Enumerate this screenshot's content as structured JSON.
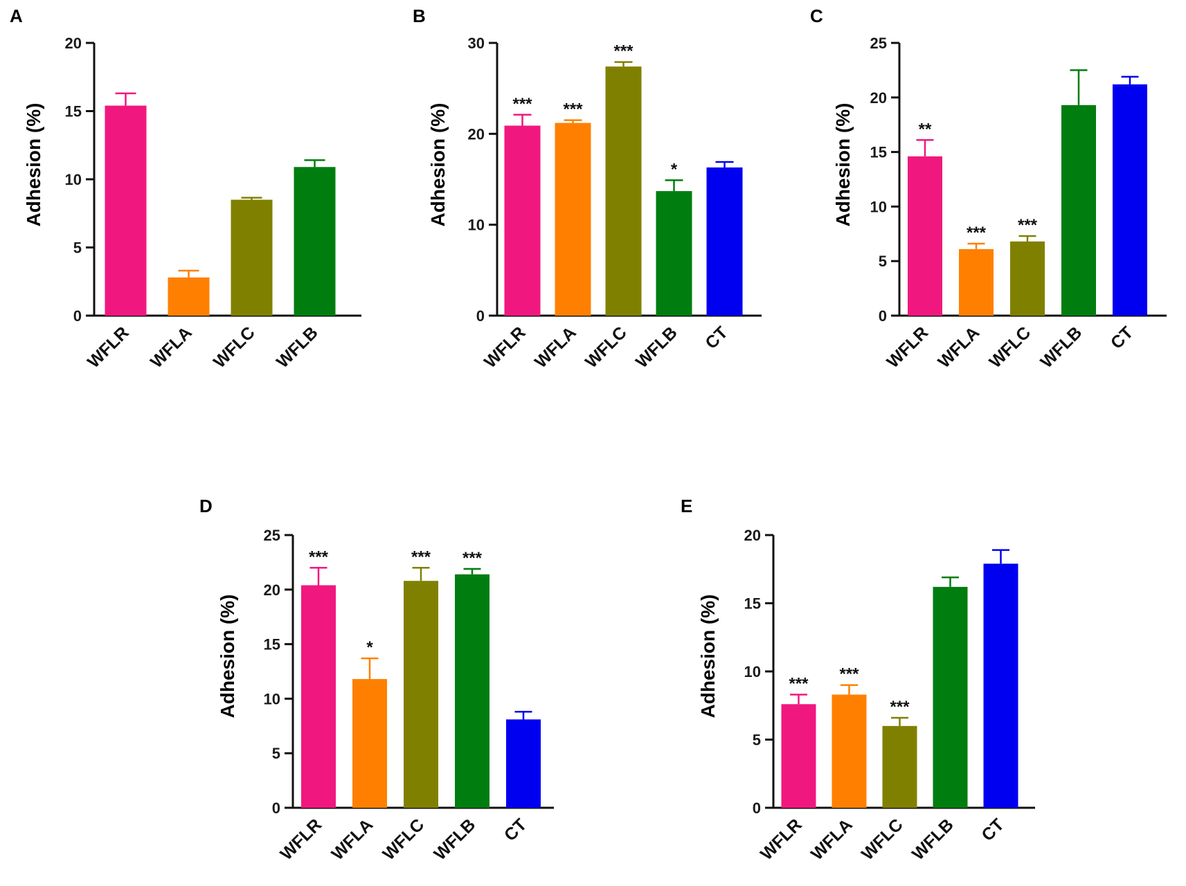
{
  "chart_data": [
    {
      "panel": "A",
      "type": "bar",
      "ylabel": "Adhesion (%)",
      "ylim": [
        0,
        20
      ],
      "yticks": [
        "0",
        "5",
        "10",
        "15",
        "20"
      ],
      "categories": [
        "WFLR",
        "WFLA",
        "WFLC",
        "WFLB"
      ],
      "values": [
        15.4,
        2.8,
        8.5,
        10.9
      ],
      "errors": [
        0.9,
        0.5,
        0.15,
        0.5
      ],
      "significance": [
        "",
        "",
        "",
        ""
      ],
      "colors": [
        "#f0187e",
        "#ff8000",
        "#808000",
        "#007d0f"
      ]
    },
    {
      "panel": "B",
      "type": "bar",
      "ylabel": "Adhesion (%)",
      "ylim": [
        0,
        30
      ],
      "yticks": [
        "0",
        "10",
        "20",
        "30"
      ],
      "categories": [
        "WFLR",
        "WFLA",
        "WFLC",
        "WFLB",
        "CT"
      ],
      "values": [
        20.9,
        21.2,
        27.4,
        13.7,
        16.3
      ],
      "errors": [
        1.2,
        0.3,
        0.5,
        1.2,
        0.6
      ],
      "significance": [
        "***",
        "***",
        "***",
        "*",
        ""
      ],
      "colors": [
        "#f0187e",
        "#ff8000",
        "#808000",
        "#007d0f",
        "#0000f0"
      ]
    },
    {
      "panel": "C",
      "type": "bar",
      "ylabel": "Adhesion (%)",
      "ylim": [
        0,
        25
      ],
      "yticks": [
        "0",
        "5",
        "10",
        "15",
        "20",
        "25"
      ],
      "categories": [
        "WFLR",
        "WFLA",
        "WFLC",
        "WFLB",
        "CT"
      ],
      "values": [
        14.6,
        6.1,
        6.8,
        19.3,
        21.2
      ],
      "errors": [
        1.5,
        0.5,
        0.5,
        3.2,
        0.7
      ],
      "significance": [
        "**",
        "***",
        "***",
        "",
        ""
      ],
      "colors": [
        "#f0187e",
        "#ff8000",
        "#808000",
        "#007d0f",
        "#0000f0"
      ]
    },
    {
      "panel": "D",
      "type": "bar",
      "ylabel": "Adhesion (%)",
      "ylim": [
        0,
        25
      ],
      "yticks": [
        "0",
        "5",
        "10",
        "15",
        "20",
        "25"
      ],
      "categories": [
        "WFLR",
        "WFLA",
        "WFLC",
        "WFLB",
        "CT"
      ],
      "values": [
        20.4,
        11.8,
        20.8,
        21.4,
        8.1
      ],
      "errors": [
        1.6,
        1.9,
        1.2,
        0.5,
        0.7
      ],
      "significance": [
        "***",
        "*",
        "***",
        "***",
        ""
      ],
      "colors": [
        "#f0187e",
        "#ff8000",
        "#808000",
        "#007d0f",
        "#0000f0"
      ]
    },
    {
      "panel": "E",
      "type": "bar",
      "ylabel": "Adhesion (%)",
      "ylim": [
        0,
        20
      ],
      "yticks": [
        "0",
        "5",
        "10",
        "15",
        "20"
      ],
      "categories": [
        "WFLR",
        "WFLA",
        "WFLC",
        "WFLB",
        "CT"
      ],
      "values": [
        7.6,
        8.3,
        6.0,
        16.2,
        17.9
      ],
      "errors": [
        0.7,
        0.7,
        0.6,
        0.7,
        1.0
      ],
      "significance": [
        "***",
        "***",
        "***",
        "",
        ""
      ],
      "colors": [
        "#f0187e",
        "#ff8000",
        "#808000",
        "#007d0f",
        "#0000f0"
      ]
    }
  ]
}
